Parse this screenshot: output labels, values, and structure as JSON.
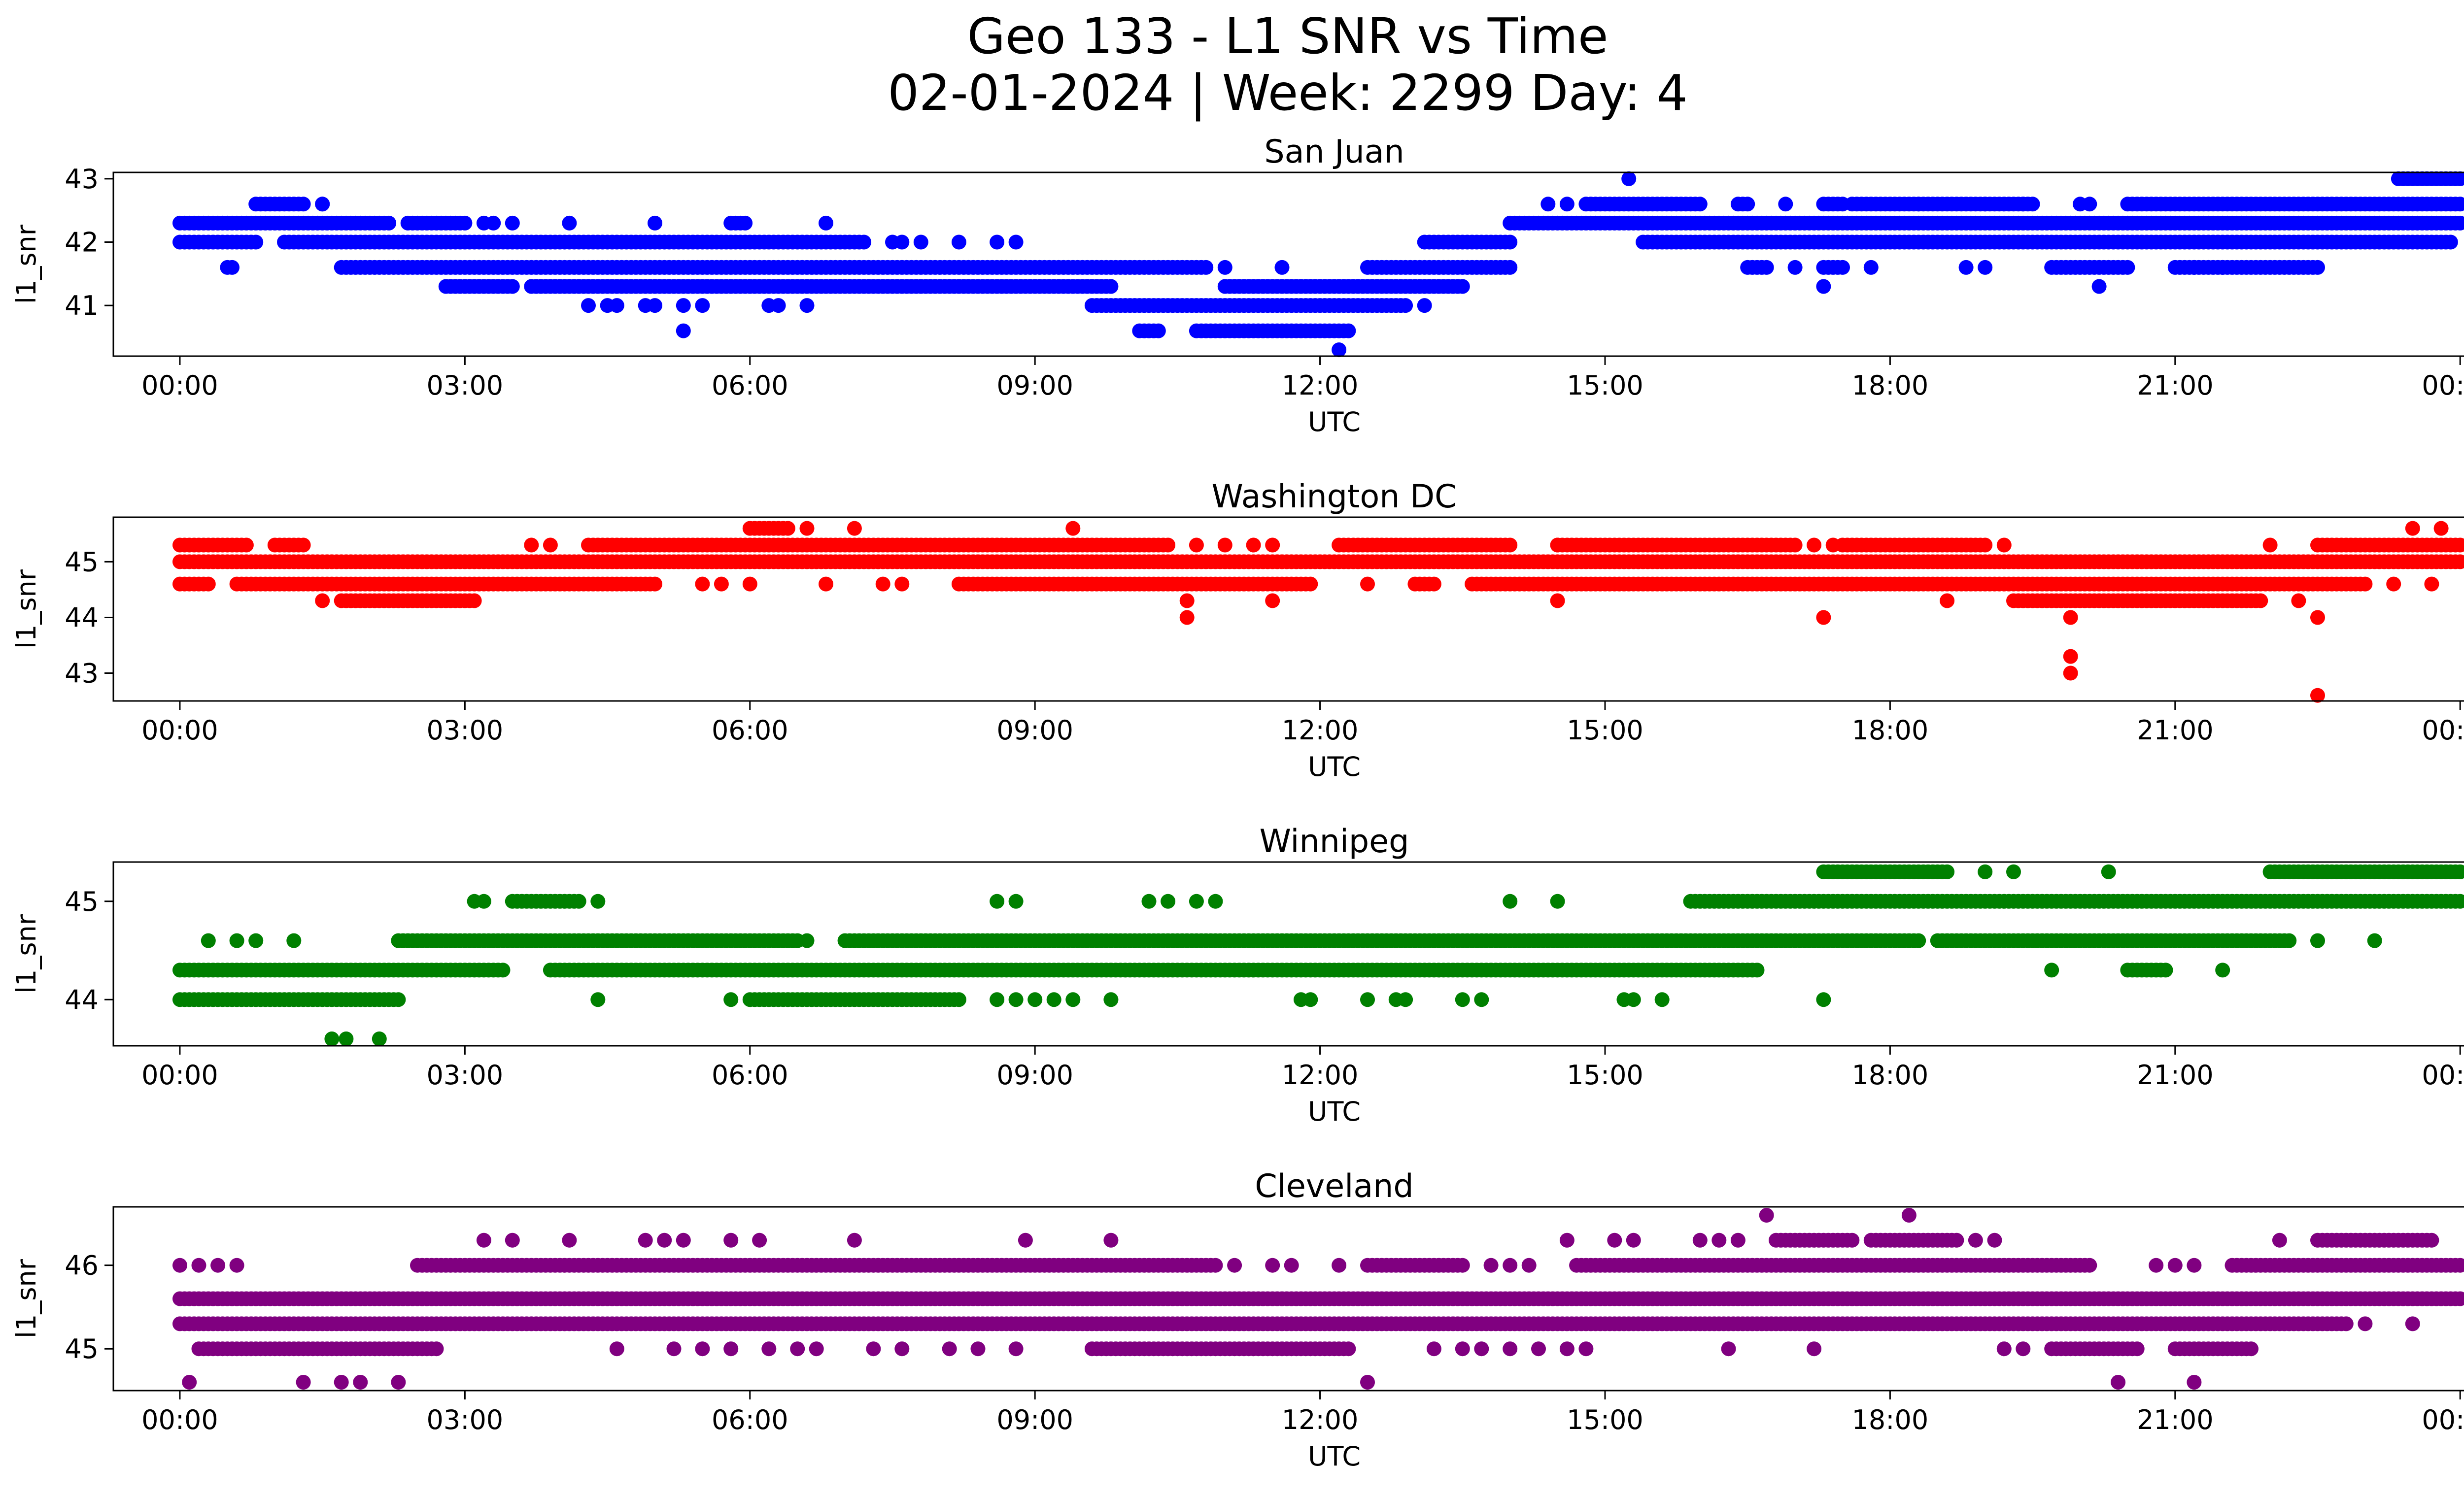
{
  "figure": {
    "title_line1": "Geo 133 - L1 SNR vs Time",
    "title_line2": "02-01-2024 | Week: 2299 Day: 4"
  },
  "chart_data": [
    {
      "type": "scatter",
      "title": "San Juan",
      "xlabel": "UTC",
      "ylabel": "l1_snr",
      "color": "#0000ff",
      "x_ticks": [
        "00:00",
        "03:00",
        "06:00",
        "09:00",
        "12:00",
        "15:00",
        "18:00",
        "21:00",
        "00:00"
      ],
      "xlim_hours": [
        -0.7,
        25.0
      ],
      "y_ticks": [
        41,
        42,
        43
      ],
      "ylim": [
        40.2,
        43.1
      ],
      "levels": [
        {
          "y": 43.0,
          "runs": [
            [
              15.25,
              15.25
            ],
            [
              23.35,
              24.0
            ]
          ],
          "isolated": []
        },
        {
          "y": 42.6,
          "runs": [
            [
              0.8,
              1.3
            ],
            [
              14.8,
              16.0
            ],
            [
              16.4,
              16.5
            ],
            [
              17.3,
              17.5
            ],
            [
              17.6,
              19.5
            ],
            [
              20.5,
              24.0
            ]
          ],
          "isolated": [
            1.5,
            1.5,
            14.4,
            14.6,
            16.9,
            18.3,
            19.0,
            19.4,
            20.0,
            20.1
          ]
        },
        {
          "y": 42.3,
          "runs": [
            [
              0.0,
              2.2
            ],
            [
              2.4,
              3.0
            ],
            [
              5.8,
              5.95
            ],
            [
              14.0,
              24.0
            ]
          ],
          "isolated": [
            3.2,
            3.3,
            3.5,
            4.1,
            5.0,
            6.8
          ]
        },
        {
          "y": 42.0,
          "runs": [
            [
              0.0,
              0.8
            ],
            [
              1.1,
              7.2
            ],
            [
              13.1,
              14.0
            ],
            [
              15.4,
              23.9
            ]
          ],
          "isolated": [
            7.5,
            7.6,
            7.8,
            8.2,
            8.6,
            8.8
          ]
        },
        {
          "y": 41.6,
          "runs": [
            [
              1.7,
              10.8
            ],
            [
              12.5,
              14.0
            ],
            [
              16.5,
              16.7
            ],
            [
              17.3,
              17.5
            ],
            [
              19.7,
              20.5
            ],
            [
              21.0,
              22.5
            ]
          ],
          "isolated": [
            0.5,
            0.55,
            11.0,
            11.6,
            17.0,
            17.8,
            18.8,
            19.0,
            21.2,
            21.5
          ]
        },
        {
          "y": 41.3,
          "runs": [
            [
              2.8,
              3.5
            ],
            [
              3.7,
              9.8
            ],
            [
              11.0,
              13.5
            ]
          ],
          "isolated": [
            17.3,
            20.2
          ]
        },
        {
          "y": 41.0,
          "runs": [
            [
              9.6,
              12.9
            ]
          ],
          "isolated": [
            4.3,
            4.5,
            4.6,
            4.9,
            5.0,
            5.3,
            5.5,
            6.2,
            6.3,
            6.6,
            13.1
          ]
        },
        {
          "y": 40.6,
          "runs": [
            [
              10.1,
              10.3
            ],
            [
              10.7,
              12.3
            ]
          ],
          "isolated": [
            5.3
          ]
        },
        {
          "y": 40.3,
          "runs": [],
          "isolated": [
            12.2
          ]
        }
      ]
    },
    {
      "type": "scatter",
      "title": "Washington DC",
      "xlabel": "UTC",
      "ylabel": "l1_snr",
      "color": "#ff0000",
      "x_ticks": [
        "00:00",
        "03:00",
        "06:00",
        "09:00",
        "12:00",
        "15:00",
        "18:00",
        "21:00",
        "00:00"
      ],
      "xlim_hours": [
        -0.7,
        25.0
      ],
      "y_ticks": [
        43,
        44,
        45
      ],
      "ylim": [
        42.5,
        45.8
      ],
      "levels": [
        {
          "y": 45.6,
          "runs": [
            [
              6.0,
              6.4
            ]
          ],
          "isolated": [
            6.6,
            7.1,
            9.4,
            23.5,
            23.8
          ]
        },
        {
          "y": 45.3,
          "runs": [
            [
              0.0,
              0.7
            ],
            [
              1.0,
              1.3
            ],
            [
              4.3,
              10.4
            ],
            [
              12.2,
              14.0
            ],
            [
              14.5,
              17.0
            ],
            [
              17.5,
              19.0
            ],
            [
              22.5,
              24.0
            ]
          ],
          "isolated": [
            3.7,
            3.9,
            10.7,
            11.0,
            11.3,
            11.5,
            14.5,
            17.2,
            17.4,
            19.2,
            22.0
          ]
        },
        {
          "y": 45.0,
          "runs": [
            [
              0.0,
              24.0
            ]
          ],
          "isolated": []
        },
        {
          "y": 44.6,
          "runs": [
            [
              0.0,
              0.3
            ],
            [
              0.6,
              5.0
            ],
            [
              8.2,
              11.9
            ],
            [
              13.0,
              13.2
            ],
            [
              13.6,
              23.0
            ]
          ],
          "isolated": [
            5.5,
            5.7,
            6.0,
            6.8,
            7.4,
            7.6,
            12.5,
            23.3,
            23.7
          ]
        },
        {
          "y": 44.3,
          "runs": [
            [
              1.7,
              3.1
            ],
            [
              19.3,
              21.9
            ]
          ],
          "isolated": [
            1.5,
            10.6,
            11.5,
            14.5,
            18.6,
            22.3
          ]
        },
        {
          "y": 44.0,
          "runs": [],
          "isolated": [
            10.6,
            17.3,
            19.9,
            22.5
          ]
        },
        {
          "y": 43.3,
          "runs": [],
          "isolated": [
            19.9
          ]
        },
        {
          "y": 43.0,
          "runs": [],
          "isolated": [
            19.9
          ]
        },
        {
          "y": 42.6,
          "runs": [],
          "isolated": [
            22.5
          ]
        }
      ]
    },
    {
      "type": "scatter",
      "title": "Winnipeg",
      "xlabel": "UTC",
      "ylabel": "l1_snr",
      "color": "#008000",
      "x_ticks": [
        "00:00",
        "03:00",
        "06:00",
        "09:00",
        "12:00",
        "15:00",
        "18:00",
        "21:00",
        "00:00"
      ],
      "xlim_hours": [
        -0.7,
        25.0
      ],
      "y_ticks": [
        44,
        45
      ],
      "ylim": [
        43.53,
        45.4
      ],
      "levels": [
        {
          "y": 45.3,
          "runs": [
            [
              17.3,
              18.6
            ],
            [
              22.0,
              24.0
            ]
          ],
          "isolated": [
            19.0,
            19.3,
            20.3
          ]
        },
        {
          "y": 45.0,
          "runs": [
            [
              3.5,
              4.2
            ],
            [
              15.9,
              24.0
            ]
          ],
          "isolated": [
            3.1,
            3.2,
            4.4,
            8.6,
            8.8,
            10.2,
            10.4,
            10.7,
            10.9,
            14.0,
            14.5
          ]
        },
        {
          "y": 44.6,
          "runs": [
            [
              2.3,
              6.5
            ],
            [
              7.0,
              18.3
            ],
            [
              18.5,
              22.2
            ]
          ],
          "isolated": [
            0.3,
            0.6,
            0.8,
            1.2,
            6.6,
            22.5,
            23.1
          ]
        },
        {
          "y": 44.3,
          "runs": [
            [
              0.0,
              3.4
            ],
            [
              3.9,
              16.6
            ],
            [
              20.5,
              20.9
            ]
          ],
          "isolated": [
            19.7,
            21.5
          ]
        },
        {
          "y": 44.0,
          "runs": [
            [
              0.0,
              2.3
            ],
            [
              6.0,
              8.2
            ]
          ],
          "isolated": [
            4.4,
            5.8,
            8.6,
            8.8,
            9.0,
            9.2,
            9.4,
            9.8,
            11.8,
            11.9,
            12.5,
            12.8,
            12.9,
            13.5,
            13.7,
            15.2,
            15.3,
            15.6,
            17.3
          ]
        },
        {
          "y": 43.6,
          "runs": [],
          "isolated": [
            1.6,
            1.75,
            2.1
          ]
        }
      ]
    },
    {
      "type": "scatter",
      "title": "Cleveland",
      "xlabel": "UTC",
      "ylabel": "l1_snr",
      "color": "#800080",
      "x_ticks": [
        "00:00",
        "03:00",
        "06:00",
        "09:00",
        "12:00",
        "15:00",
        "18:00",
        "21:00",
        "00:00"
      ],
      "xlim_hours": [
        -0.7,
        25.0
      ],
      "y_ticks": [
        45,
        46
      ],
      "ylim": [
        44.5,
        46.7
      ],
      "levels": [
        {
          "y": 46.6,
          "runs": [],
          "isolated": [
            16.7,
            18.2
          ]
        },
        {
          "y": 46.3,
          "runs": [
            [
              16.8,
              17.6
            ],
            [
              17.8,
              18.7
            ],
            [
              22.5,
              23.7
            ]
          ],
          "isolated": [
            3.2,
            3.5,
            4.1,
            4.9,
            5.1,
            5.3,
            5.8,
            6.1,
            7.1,
            8.9,
            9.8,
            14.6,
            15.1,
            15.3,
            16.0,
            16.2,
            16.4,
            18.9,
            19.1,
            22.1
          ]
        },
        {
          "y": 46.0,
          "runs": [
            [
              2.5,
              10.9
            ],
            [
              12.5,
              13.5
            ],
            [
              14.7,
              20.1
            ],
            [
              21.6,
              24.0
            ]
          ],
          "isolated": [
            0.0,
            0.2,
            0.4,
            0.6,
            11.1,
            11.5,
            11.7,
            12.2,
            13.8,
            14.0,
            14.2,
            20.8,
            21.0,
            21.2
          ]
        },
        {
          "y": 45.6,
          "runs": [
            [
              0.0,
              24.0
            ]
          ],
          "isolated": []
        },
        {
          "y": 45.3,
          "runs": [
            [
              0.0,
              22.8
            ]
          ],
          "isolated": [
            23.0,
            23.5
          ]
        },
        {
          "y": 45.0,
          "runs": [
            [
              0.2,
              2.7
            ],
            [
              9.6,
              12.3
            ],
            [
              19.7,
              20.6
            ],
            [
              21.0,
              21.8
            ]
          ],
          "isolated": [
            4.6,
            5.2,
            5.5,
            5.8,
            6.2,
            6.5,
            6.7,
            7.3,
            7.6,
            8.1,
            8.4,
            8.8,
            13.2,
            13.5,
            13.7,
            14.0,
            14.3,
            14.6,
            14.8,
            16.3,
            17.2,
            19.2,
            19.4
          ]
        },
        {
          "y": 44.6,
          "runs": [],
          "isolated": [
            0.1,
            1.3,
            1.7,
            1.9,
            2.3,
            12.5,
            20.4,
            21.2
          ]
        }
      ]
    }
  ]
}
